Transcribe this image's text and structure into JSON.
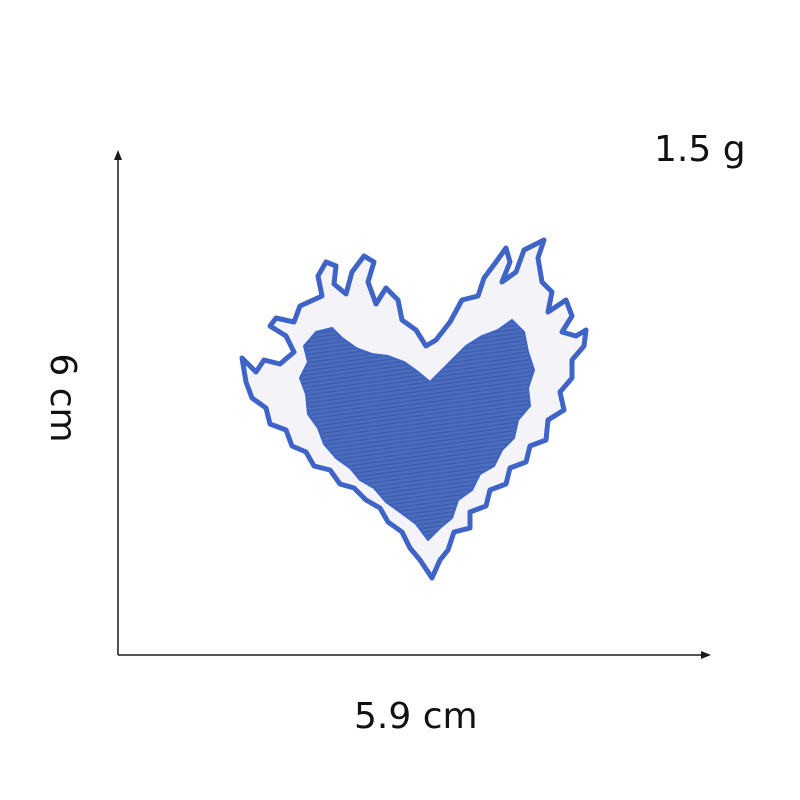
{
  "measurements": {
    "weight": "1.5 g",
    "height": "6 cm",
    "width": "5.9 cm"
  },
  "product": {
    "icon": "flaming-heart-patch-icon",
    "colors": {
      "flame_outline": "#3e64c8",
      "flame_fill": "#f4f3f8",
      "heart_fill": "#4b6dbf",
      "heart_texture": "#3d5ca8",
      "axis": "#1a1a1a"
    }
  }
}
